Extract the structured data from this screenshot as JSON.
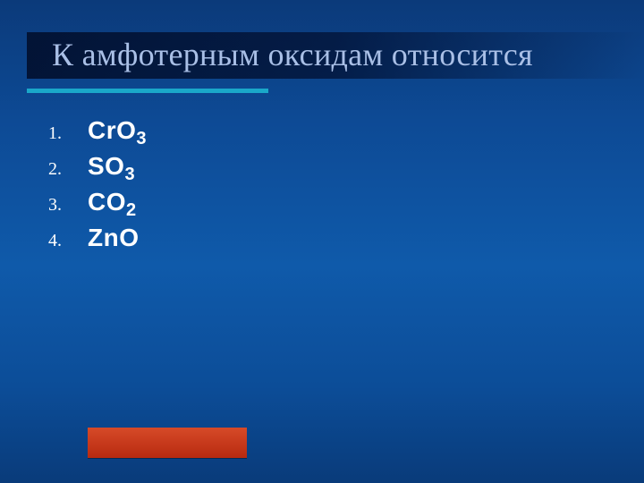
{
  "slide": {
    "title": "К амфотерным оксидам относится",
    "title_color": "#a9bfe6",
    "title_fontsize": 36,
    "underline_color": "#1aa8c9",
    "background_gradient": [
      "#0b3a7a",
      "#0d4a95",
      "#0f5aaa",
      "#0c4d98",
      "#093b7a"
    ],
    "items": [
      {
        "num": "1.",
        "base": "CrO",
        "sub": "3"
      },
      {
        "num": "2.",
        "base": "SO",
        "sub": "3"
      },
      {
        "num": "3.",
        "base": "CO",
        "sub": "2"
      },
      {
        "num": "4.",
        "base": "ZnO",
        "sub": ""
      }
    ],
    "item_number_fontsize": 20,
    "item_formula_fontsize": 28,
    "text_color": "#ffffff",
    "action_button_color": "#c9371a"
  }
}
